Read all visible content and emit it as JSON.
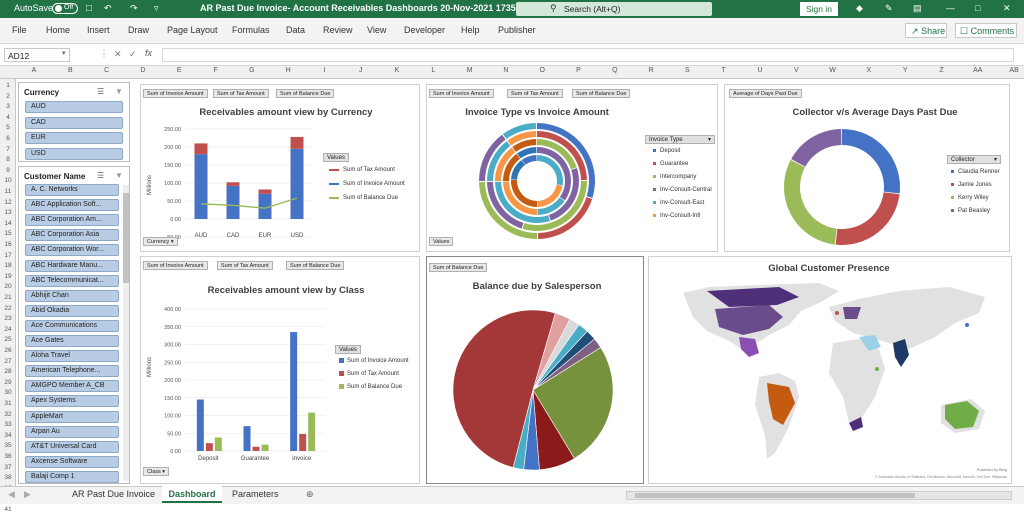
{
  "titlebar": {
    "autosave": "AutoSave",
    "toggle": "Off",
    "filename": "AR Past Due Invoice- Account Receivables Dashboards 20-Nov-2021 173504.xl...",
    "search": "Search (Alt+Q)",
    "signin": "Sign in"
  },
  "menu": [
    "File",
    "Home",
    "Insert",
    "Draw",
    "Page Layout",
    "Formulas",
    "Data",
    "Review",
    "View",
    "Developer",
    "Help",
    "Publisher"
  ],
  "share": "Share",
  "comments": "Comments",
  "namebox": "AD12",
  "fx": "fx",
  "columns": [
    "A",
    "B",
    "C",
    "D",
    "E",
    "F",
    "G",
    "H",
    "I",
    "J",
    "K",
    "L",
    "M",
    "N",
    "O",
    "P",
    "Q",
    "R",
    "S",
    "T",
    "U",
    "V",
    "W",
    "X",
    "Y",
    "Z",
    "AA",
    "AB"
  ],
  "rows": [
    "1",
    "2",
    "3",
    "4",
    "5",
    "6",
    "7",
    "8",
    "9",
    "10",
    "11",
    "12",
    "13",
    "14",
    "15",
    "16",
    "17",
    "18",
    "19",
    "20",
    "21",
    "22",
    "23",
    "24",
    "25",
    "26",
    "27",
    "28",
    "29",
    "30",
    "31",
    "32",
    "33",
    "34",
    "35",
    "36",
    "37",
    "38",
    "39",
    "40",
    "41"
  ],
  "currency_slicer": {
    "title": "Currency",
    "items": [
      "AUD",
      "CAD",
      "EUR",
      "USD"
    ]
  },
  "customer_slicer": {
    "title": "Customer Name",
    "items": [
      "A. C. Networks",
      "ABC Application Soft...",
      "ABC Corporation Am...",
      "ABC Corporation Asia",
      "ABC Corporation Wor...",
      "ABC Hardware Manu...",
      "ABC Telecommunicat...",
      "Abhijit Chan",
      "Abid Okadia",
      "Ace Communications",
      "Ace Gates",
      "Aloha Travel",
      "American Telephone...",
      "AMGPO Member A_CB",
      "Apex Systems",
      "AppleMart",
      "Arpan Au",
      "AT&T Universal Card",
      "Axcense Software",
      "Balaji Comp 1"
    ]
  },
  "field_buttons": {
    "sum_invoice": "Sum of Invoice Amount",
    "sum_tax": "Sum of Tax Amount",
    "sum_balance": "Sum of Balance Due",
    "avg_days": "Average of Days Past Due",
    "values": "Values",
    "currency": "Currency",
    "class": "Class"
  },
  "currency_chart": {
    "title": "Receivables amount view by Currency",
    "ylabel": "Millions",
    "yticks": [
      "250.00",
      "200.00",
      "150.00",
      "100.00",
      "50.00",
      "0.00",
      "-50.00"
    ],
    "legend_title": "Values",
    "legend": [
      "Sum of Tax Amount",
      "Sum of Invoice Amount",
      "Sum of Balance Due"
    ]
  },
  "class_chart": {
    "title": "Receivables amount view by Class",
    "ylabel": "Millions",
    "yticks": [
      "400.00",
      "350.00",
      "300.00",
      "250.00",
      "200.00",
      "150.00",
      "100.00",
      "50.00",
      "0.00"
    ],
    "legend_title": "Values",
    "legend": [
      "Sum of Invoice Amount",
      "Sum of Tax Amount",
      "Sum of Balance Due"
    ]
  },
  "invoice_type_chart": {
    "title": "Invoice Type vs Invoice Amount",
    "legend_title": "Invoice Type",
    "legend": [
      "Deposit",
      "Guarantee",
      "Intercompany",
      "Inv-Consult-Central",
      "Inv-Consult-East",
      "Inv-Consult-Intl"
    ]
  },
  "collector_chart": {
    "title": "Collector v/s Average Days Past Due",
    "legend_title": "Collector",
    "legend": [
      "Claudia Renner",
      "Jamie Jones",
      "Kerry Wiley",
      "Pat Beasley"
    ]
  },
  "salesperson_chart": {
    "title": "Balance due by Salesperson"
  },
  "map": {
    "title": "Global Customer  Presence",
    "credit": "© Australian Bureau of Statistics, GeoNames, Microsoft, Navinfo, TomTom, Wikipedia",
    "powered": "Powered by Bing"
  },
  "sheet_tabs": [
    "AR Past Due Invoice",
    "Dashboard",
    "Parameters"
  ],
  "chart_data": [
    {
      "type": "bar",
      "title": "Receivables amount view by Currency",
      "ylabel": "Millions",
      "categories": [
        "AUD",
        "CAD",
        "EUR",
        "USD"
      ],
      "ylim": [
        -50,
        250
      ],
      "legend_placement": "right",
      "series": [
        {
          "name": "Sum of Invoice Amount",
          "values": [
            180,
            92,
            70,
            195
          ]
        },
        {
          "name": "Sum of Tax Amount",
          "values": [
            30,
            10,
            12,
            33
          ]
        },
        {
          "name": "Sum of Balance Due",
          "values": [
            42,
            38,
            30,
            58
          ]
        }
      ]
    },
    {
      "type": "bar",
      "title": "Receivables amount view by Class",
      "ylabel": "Millions",
      "categories": [
        "Deposit",
        "Guarantee",
        "Invoice"
      ],
      "ylim": [
        0,
        400
      ],
      "legend_placement": "right",
      "series": [
        {
          "name": "Sum of Invoice Amount",
          "values": [
            145,
            70,
            335
          ]
        },
        {
          "name": "Sum of Tax Amount",
          "values": [
            22,
            12,
            48
          ]
        },
        {
          "name": "Sum of Balance Due",
          "values": [
            38,
            18,
            108
          ]
        }
      ]
    },
    {
      "type": "pie",
      "title": "Invoice Type vs Invoice Amount",
      "variant": "multi-ring doughnut",
      "legend_placement": "right",
      "categories": [
        "Deposit",
        "Guarantee",
        "Intercompany",
        "Inv-Consult-Central",
        "Inv-Consult-East",
        "Inv-Consult-Intl"
      ]
    },
    {
      "type": "pie",
      "title": "Collector v/s Average Days Past Due",
      "variant": "doughnut",
      "legend_placement": "right",
      "categories": [
        "Claudia Renner",
        "Jamie Jones",
        "Kerry Wiley",
        "Pat Beasley"
      ],
      "values": [
        27,
        25,
        31,
        17
      ]
    },
    {
      "type": "pie",
      "title": "Balance due by Salesperson",
      "values": [
        48,
        24,
        10,
        7,
        3,
        2,
        2,
        2,
        2
      ]
    }
  ]
}
